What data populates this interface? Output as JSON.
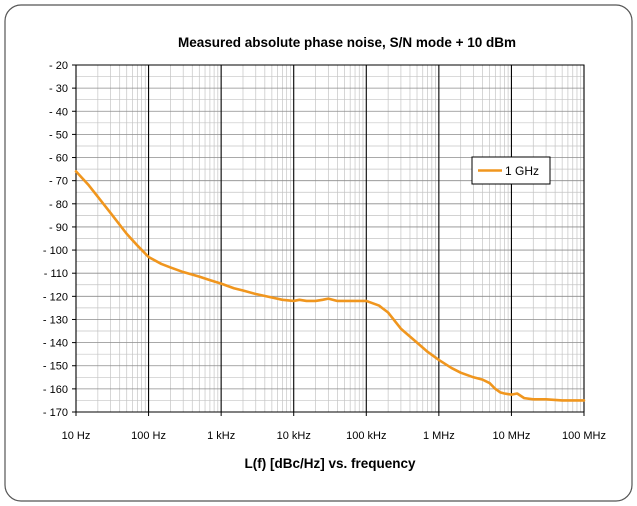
{
  "chart_data": {
    "type": "line",
    "title": "Measured absolute phase noise, S/N mode + 10 dBm",
    "xlabel": "L(f) [dBc/Hz] vs. frequency",
    "ylabel": "",
    "x_scale": "log",
    "xlim": [
      10,
      100000000
    ],
    "ylim": [
      -170,
      -20
    ],
    "grid": true,
    "legend_position": "top-right",
    "x_tick_values": [
      10,
      100,
      1000,
      10000,
      100000,
      1000000,
      10000000,
      100000000
    ],
    "x_tick_labels": [
      "10 Hz",
      "100 Hz",
      "1 kHz",
      "10 kHz",
      "100 kHz",
      "1 MHz",
      "10 MHz",
      "100 MHz"
    ],
    "y_tick_values": [
      -20,
      -30,
      -40,
      -50,
      -60,
      -70,
      -80,
      -90,
      -100,
      -110,
      -120,
      -130,
      -140,
      -150,
      -160,
      -170
    ],
    "y_tick_labels": [
      "- 20",
      "- 30",
      "- 40",
      "- 50",
      "- 60",
      "- 70",
      "- 80",
      "- 90",
      "- 100",
      "- 110",
      "- 120",
      "- 130",
      "- 140",
      "- 150",
      "- 160",
      "- 170"
    ],
    "series": [
      {
        "name": "1 GHz",
        "color": "#f0961e",
        "x": [
          10,
          15,
          20,
          30,
          50,
          70,
          100,
          150,
          200,
          300,
          500,
          700,
          1000,
          1500,
          2000,
          3000,
          5000,
          7000,
          10000,
          12000,
          15000,
          20000,
          25000,
          30000,
          40000,
          50000,
          70000,
          100000,
          150000,
          200000,
          300000,
          500000,
          700000,
          1000000,
          1500000,
          2000000,
          3000000,
          4000000,
          5000000,
          6000000,
          7000000,
          8000000,
          10000000,
          12000000,
          15000000,
          20000000,
          30000000,
          50000000,
          100000000
        ],
        "y": [
          -66,
          -72,
          -77,
          -84,
          -93,
          -98,
          -103,
          -106,
          -107.5,
          -109.5,
          -111.5,
          -113,
          -114.5,
          -116.5,
          -117.5,
          -119,
          -120.5,
          -121.5,
          -122,
          -121.5,
          -122,
          -122,
          -121.5,
          -121,
          -122,
          -122,
          -122,
          -122,
          -124,
          -127,
          -134,
          -140,
          -144,
          -147.5,
          -151,
          -153,
          -155,
          -156,
          -157.5,
          -160,
          -161.5,
          -162,
          -162.5,
          -162,
          -164,
          -164.5,
          -164.5,
          -165,
          -165
        ]
      }
    ]
  }
}
